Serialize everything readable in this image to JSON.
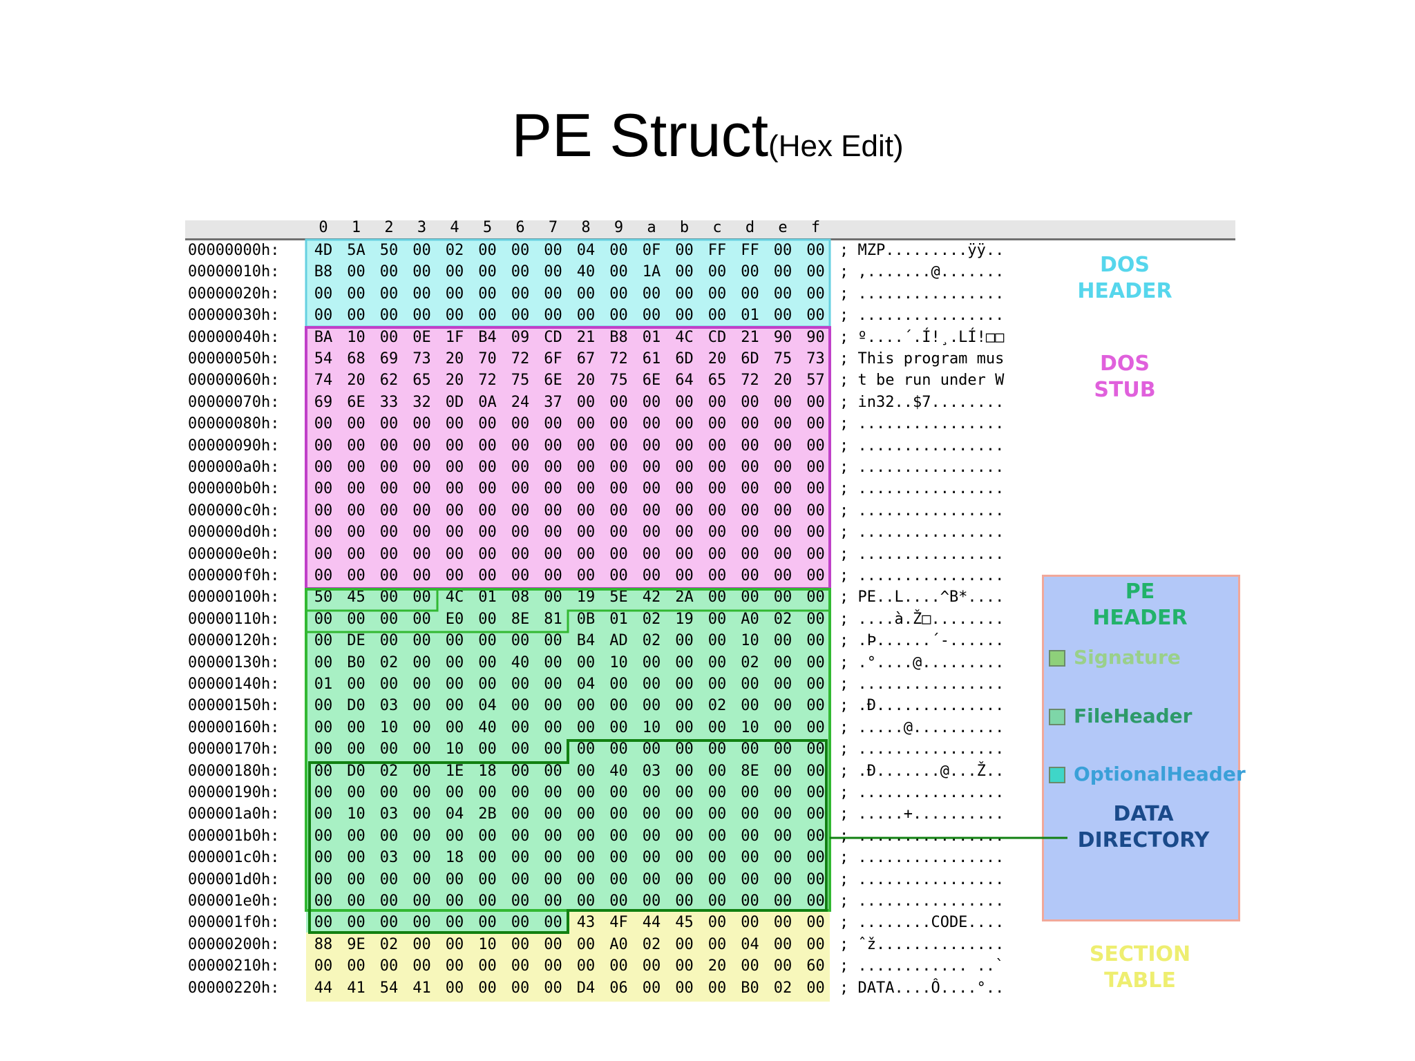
{
  "title": {
    "main": "PE Struct",
    "sub": "(Hex Edit)"
  },
  "column_headers": [
    "0",
    "1",
    "2",
    "3",
    "4",
    "5",
    "6",
    "7",
    "8",
    "9",
    "a",
    "b",
    "c",
    "d",
    "e",
    "f"
  ],
  "rows": [
    {
      "addr": "00000000h:",
      "bytes": [
        "4D",
        "5A",
        "50",
        "00",
        "02",
        "00",
        "00",
        "00",
        "04",
        "00",
        "0F",
        "00",
        "FF",
        "FF",
        "00",
        "00"
      ],
      "ascii": "; MZP.........ÿÿ.."
    },
    {
      "addr": "00000010h:",
      "bytes": [
        "B8",
        "00",
        "00",
        "00",
        "00",
        "00",
        "00",
        "00",
        "40",
        "00",
        "1A",
        "00",
        "00",
        "00",
        "00",
        "00"
      ],
      "ascii": "; ,.......@......."
    },
    {
      "addr": "00000020h:",
      "bytes": [
        "00",
        "00",
        "00",
        "00",
        "00",
        "00",
        "00",
        "00",
        "00",
        "00",
        "00",
        "00",
        "00",
        "00",
        "00",
        "00"
      ],
      "ascii": "; ................"
    },
    {
      "addr": "00000030h:",
      "bytes": [
        "00",
        "00",
        "00",
        "00",
        "00",
        "00",
        "00",
        "00",
        "00",
        "00",
        "00",
        "00",
        "00",
        "01",
        "00",
        "00"
      ],
      "ascii": "; ................"
    },
    {
      "addr": "00000040h:",
      "bytes": [
        "BA",
        "10",
        "00",
        "0E",
        "1F",
        "B4",
        "09",
        "CD",
        "21",
        "B8",
        "01",
        "4C",
        "CD",
        "21",
        "90",
        "90"
      ],
      "ascii": "; º....´.Í!¸.LÍ!□□"
    },
    {
      "addr": "00000050h:",
      "bytes": [
        "54",
        "68",
        "69",
        "73",
        "20",
        "70",
        "72",
        "6F",
        "67",
        "72",
        "61",
        "6D",
        "20",
        "6D",
        "75",
        "73"
      ],
      "ascii": "; This program mus"
    },
    {
      "addr": "00000060h:",
      "bytes": [
        "74",
        "20",
        "62",
        "65",
        "20",
        "72",
        "75",
        "6E",
        "20",
        "75",
        "6E",
        "64",
        "65",
        "72",
        "20",
        "57"
      ],
      "ascii": "; t be run under W"
    },
    {
      "addr": "00000070h:",
      "bytes": [
        "69",
        "6E",
        "33",
        "32",
        "0D",
        "0A",
        "24",
        "37",
        "00",
        "00",
        "00",
        "00",
        "00",
        "00",
        "00",
        "00"
      ],
      "ascii": "; in32..$7........"
    },
    {
      "addr": "00000080h:",
      "bytes": [
        "00",
        "00",
        "00",
        "00",
        "00",
        "00",
        "00",
        "00",
        "00",
        "00",
        "00",
        "00",
        "00",
        "00",
        "00",
        "00"
      ],
      "ascii": "; ................"
    },
    {
      "addr": "00000090h:",
      "bytes": [
        "00",
        "00",
        "00",
        "00",
        "00",
        "00",
        "00",
        "00",
        "00",
        "00",
        "00",
        "00",
        "00",
        "00",
        "00",
        "00"
      ],
      "ascii": "; ................"
    },
    {
      "addr": "000000a0h:",
      "bytes": [
        "00",
        "00",
        "00",
        "00",
        "00",
        "00",
        "00",
        "00",
        "00",
        "00",
        "00",
        "00",
        "00",
        "00",
        "00",
        "00"
      ],
      "ascii": "; ................"
    },
    {
      "addr": "000000b0h:",
      "bytes": [
        "00",
        "00",
        "00",
        "00",
        "00",
        "00",
        "00",
        "00",
        "00",
        "00",
        "00",
        "00",
        "00",
        "00",
        "00",
        "00"
      ],
      "ascii": "; ................"
    },
    {
      "addr": "000000c0h:",
      "bytes": [
        "00",
        "00",
        "00",
        "00",
        "00",
        "00",
        "00",
        "00",
        "00",
        "00",
        "00",
        "00",
        "00",
        "00",
        "00",
        "00"
      ],
      "ascii": "; ................"
    },
    {
      "addr": "000000d0h:",
      "bytes": [
        "00",
        "00",
        "00",
        "00",
        "00",
        "00",
        "00",
        "00",
        "00",
        "00",
        "00",
        "00",
        "00",
        "00",
        "00",
        "00"
      ],
      "ascii": "; ................"
    },
    {
      "addr": "000000e0h:",
      "bytes": [
        "00",
        "00",
        "00",
        "00",
        "00",
        "00",
        "00",
        "00",
        "00",
        "00",
        "00",
        "00",
        "00",
        "00",
        "00",
        "00"
      ],
      "ascii": "; ................"
    },
    {
      "addr": "000000f0h:",
      "bytes": [
        "00",
        "00",
        "00",
        "00",
        "00",
        "00",
        "00",
        "00",
        "00",
        "00",
        "00",
        "00",
        "00",
        "00",
        "00",
        "00"
      ],
      "ascii": "; ................"
    },
    {
      "addr": "00000100h:",
      "bytes": [
        "50",
        "45",
        "00",
        "00",
        "4C",
        "01",
        "08",
        "00",
        "19",
        "5E",
        "42",
        "2A",
        "00",
        "00",
        "00",
        "00"
      ],
      "ascii": "; PE..L....^B*...."
    },
    {
      "addr": "00000110h:",
      "bytes": [
        "00",
        "00",
        "00",
        "00",
        "E0",
        "00",
        "8E",
        "81",
        "0B",
        "01",
        "02",
        "19",
        "00",
        "A0",
        "02",
        "00"
      ],
      "ascii": "; ....à.Ž□........"
    },
    {
      "addr": "00000120h:",
      "bytes": [
        "00",
        "DE",
        "00",
        "00",
        "00",
        "00",
        "00",
        "00",
        "B4",
        "AD",
        "02",
        "00",
        "00",
        "10",
        "00",
        "00"
      ],
      "ascii": "; .Þ......´-......"
    },
    {
      "addr": "00000130h:",
      "bytes": [
        "00",
        "B0",
        "02",
        "00",
        "00",
        "00",
        "40",
        "00",
        "00",
        "10",
        "00",
        "00",
        "00",
        "02",
        "00",
        "00"
      ],
      "ascii": "; .°....@........."
    },
    {
      "addr": "00000140h:",
      "bytes": [
        "01",
        "00",
        "00",
        "00",
        "00",
        "00",
        "00",
        "00",
        "04",
        "00",
        "00",
        "00",
        "00",
        "00",
        "00",
        "00"
      ],
      "ascii": "; ................"
    },
    {
      "addr": "00000150h:",
      "bytes": [
        "00",
        "D0",
        "03",
        "00",
        "00",
        "04",
        "00",
        "00",
        "00",
        "00",
        "00",
        "00",
        "02",
        "00",
        "00",
        "00"
      ],
      "ascii": "; .Ð.............."
    },
    {
      "addr": "00000160h:",
      "bytes": [
        "00",
        "00",
        "10",
        "00",
        "00",
        "40",
        "00",
        "00",
        "00",
        "00",
        "10",
        "00",
        "00",
        "10",
        "00",
        "00"
      ],
      "ascii": "; .....@.........."
    },
    {
      "addr": "00000170h:",
      "bytes": [
        "00",
        "00",
        "00",
        "00",
        "10",
        "00",
        "00",
        "00",
        "00",
        "00",
        "00",
        "00",
        "00",
        "00",
        "00",
        "00"
      ],
      "ascii": "; ................"
    },
    {
      "addr": "00000180h:",
      "bytes": [
        "00",
        "D0",
        "02",
        "00",
        "1E",
        "18",
        "00",
        "00",
        "00",
        "40",
        "03",
        "00",
        "00",
        "8E",
        "00",
        "00"
      ],
      "ascii": "; .Ð.......@...Ž.."
    },
    {
      "addr": "00000190h:",
      "bytes": [
        "00",
        "00",
        "00",
        "00",
        "00",
        "00",
        "00",
        "00",
        "00",
        "00",
        "00",
        "00",
        "00",
        "00",
        "00",
        "00"
      ],
      "ascii": "; ................"
    },
    {
      "addr": "000001a0h:",
      "bytes": [
        "00",
        "10",
        "03",
        "00",
        "04",
        "2B",
        "00",
        "00",
        "00",
        "00",
        "00",
        "00",
        "00",
        "00",
        "00",
        "00"
      ],
      "ascii": "; .....+.........."
    },
    {
      "addr": "000001b0h:",
      "bytes": [
        "00",
        "00",
        "00",
        "00",
        "00",
        "00",
        "00",
        "00",
        "00",
        "00",
        "00",
        "00",
        "00",
        "00",
        "00",
        "00"
      ],
      "ascii": "; ................"
    },
    {
      "addr": "000001c0h:",
      "bytes": [
        "00",
        "00",
        "03",
        "00",
        "18",
        "00",
        "00",
        "00",
        "00",
        "00",
        "00",
        "00",
        "00",
        "00",
        "00",
        "00"
      ],
      "ascii": "; ................"
    },
    {
      "addr": "000001d0h:",
      "bytes": [
        "00",
        "00",
        "00",
        "00",
        "00",
        "00",
        "00",
        "00",
        "00",
        "00",
        "00",
        "00",
        "00",
        "00",
        "00",
        "00"
      ],
      "ascii": "; ................"
    },
    {
      "addr": "000001e0h:",
      "bytes": [
        "00",
        "00",
        "00",
        "00",
        "00",
        "00",
        "00",
        "00",
        "00",
        "00",
        "00",
        "00",
        "00",
        "00",
        "00",
        "00"
      ],
      "ascii": "; ................"
    },
    {
      "addr": "000001f0h:",
      "bytes": [
        "00",
        "00",
        "00",
        "00",
        "00",
        "00",
        "00",
        "00",
        "43",
        "4F",
        "44",
        "45",
        "00",
        "00",
        "00",
        "00"
      ],
      "ascii": "; ........CODE...."
    },
    {
      "addr": "00000200h:",
      "bytes": [
        "88",
        "9E",
        "02",
        "00",
        "00",
        "10",
        "00",
        "00",
        "00",
        "A0",
        "02",
        "00",
        "00",
        "04",
        "00",
        "00"
      ],
      "ascii": "; ˆž.............."
    },
    {
      "addr": "00000210h:",
      "bytes": [
        "00",
        "00",
        "00",
        "00",
        "00",
        "00",
        "00",
        "00",
        "00",
        "00",
        "00",
        "00",
        "20",
        "00",
        "00",
        "60"
      ],
      "ascii": "; ............ ..`"
    },
    {
      "addr": "00000220h:",
      "bytes": [
        "44",
        "41",
        "54",
        "41",
        "00",
        "00",
        "00",
        "00",
        "D4",
        "06",
        "00",
        "00",
        "00",
        "B0",
        "02",
        "00"
      ],
      "ascii": "; DATA....Ô....°.."
    }
  ],
  "labels": {
    "dos_header": [
      "DOS",
      "HEADER"
    ],
    "dos_stub": [
      "DOS",
      "STUB"
    ],
    "pe_header": [
      "PE",
      "HEADER"
    ],
    "data_directory": [
      "DATA",
      "DIRECTORY"
    ],
    "section_table": [
      "SECTION",
      "TABLE"
    ]
  },
  "legend": [
    {
      "label": "Signature",
      "color": "#8ed07a",
      "text_color": "#9ad08a"
    },
    {
      "label": "FileHeader",
      "color": "#7ed6a8",
      "text_color": "#2e9a6a"
    },
    {
      "label": "OptionalHeader",
      "color": "#3fd6c8",
      "text_color": "#3aa0d8"
    }
  ],
  "colors": {
    "dos_header": "#b8f4f4",
    "dos_header_border": "#66d0e0",
    "dos_stub": "#f7c2f2",
    "dos_stub_border": "#c040c8",
    "pe_header": "#a8f0c4",
    "pe_header_border": "#32b832",
    "section_table": "#f7f7bb",
    "data_dir_border": "#118011"
  }
}
